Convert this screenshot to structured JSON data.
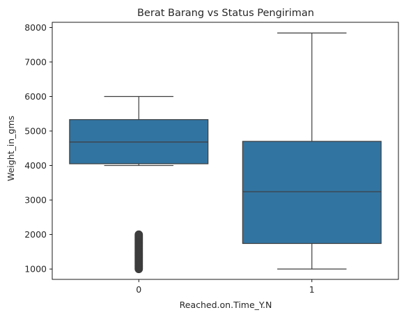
{
  "chart_data": {
    "type": "box",
    "title": "Berat Barang vs Status Pengiriman",
    "xlabel": "Reached.on.Time_Y.N",
    "ylabel": "Weight_in_gms",
    "categories": [
      "0",
      "1"
    ],
    "ylim": [
      700,
      8150
    ],
    "yticks": [
      1000,
      2000,
      3000,
      4000,
      5000,
      6000,
      7000,
      8000
    ],
    "ytick_labels": [
      "1000",
      "2000",
      "3000",
      "4000",
      "5000",
      "6000",
      "7000",
      "8000"
    ],
    "grid": false,
    "boxes": [
      {
        "category": "0",
        "whisker_low": 4000,
        "q1": 4050,
        "median": 4680,
        "q3": 5330,
        "whisker_high": 6000,
        "outlier_range": [
          1000,
          2000
        ]
      },
      {
        "category": "1",
        "whisker_low": 1000,
        "q1": 1740,
        "median": 3240,
        "q3": 4700,
        "whisker_high": 7840,
        "outlier_range": null
      }
    ],
    "colors": {
      "box_fill": "#3274a1",
      "line": "#3d3d3d",
      "axis": "#000000"
    }
  }
}
